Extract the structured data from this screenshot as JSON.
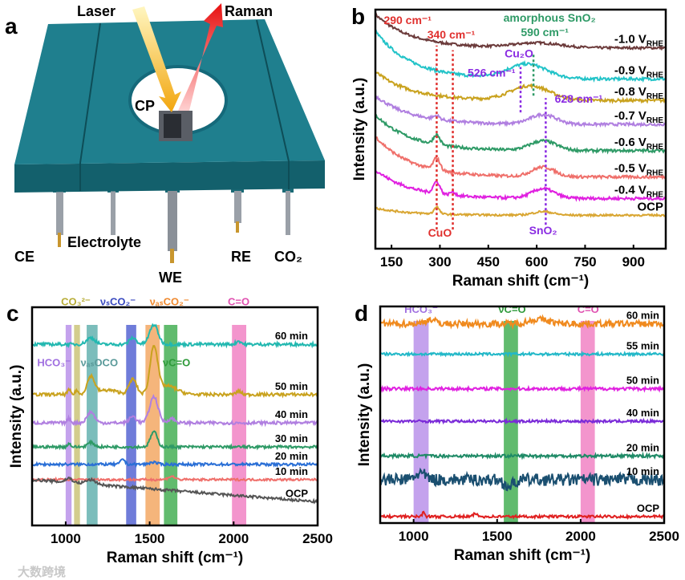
{
  "panel_a": {
    "letter": "a",
    "labels": {
      "laser": "Laser",
      "raman": "Raman",
      "cp": "CP",
      "ce": "CE",
      "electrolyte": "Electrolyte",
      "we": "WE",
      "re": "RE",
      "co2": "CO₂"
    },
    "colors": {
      "cell": "#1f7f8e",
      "cell_dark": "#13606c"
    }
  },
  "watermark": "大数跨境",
  "chart_data": [
    {
      "id": "b",
      "type": "line",
      "letter": "b",
      "xlabel": "Raman shift (cm⁻¹)",
      "ylabel": "Intensity (a.u.)",
      "xlim": [
        100,
        1000
      ],
      "ylim": [
        0,
        100
      ],
      "xticks": [
        150,
        300,
        450,
        600,
        750,
        900
      ],
      "subscript": "RHE",
      "series": [
        {
          "name": "-1.0 V",
          "sub": true,
          "color": "#6b3a3a",
          "offset": 84,
          "rise": 14,
          "noise": 0.5,
          "peaks": [
            [
              600,
              2,
              70
            ]
          ]
        },
        {
          "name": "-0.9 V",
          "sub": true,
          "color": "#22c3c8",
          "offset": 71,
          "rise": 20,
          "noise": 0.6,
          "peaks": [
            [
              570,
              6,
              60
            ]
          ]
        },
        {
          "name": "-0.8 V",
          "sub": true,
          "color": "#c9a21e",
          "offset": 62,
          "rise": 12,
          "noise": 0.6,
          "peaks": [
            [
              580,
              6,
              60
            ]
          ]
        },
        {
          "name": "-0.7 V",
          "sub": true,
          "color": "#b07fe0",
          "offset": 52,
          "rise": 12,
          "noise": 0.6,
          "peaks": [
            [
              290,
              1.5,
              10
            ],
            [
              620,
              4,
              40
            ]
          ]
        },
        {
          "name": "-0.6 V",
          "sub": true,
          "color": "#2e9a66",
          "offset": 41,
          "rise": 15,
          "noise": 0.6,
          "peaks": [
            [
              290,
              4,
              10
            ],
            [
              620,
              4,
              40
            ]
          ]
        },
        {
          "name": "-0.5 V",
          "sub": true,
          "color": "#ef6f6a",
          "offset": 30,
          "rise": 17,
          "noise": 0.6,
          "peaks": [
            [
              290,
              5,
              10
            ],
            [
              620,
              4,
              35
            ]
          ]
        },
        {
          "name": "-0.4 V",
          "sub": true,
          "color": "#e020e0",
          "offset": 21,
          "rise": 12,
          "noise": 0.6,
          "peaks": [
            [
              290,
              5,
              10
            ],
            [
              340,
              1.5,
              8
            ],
            [
              620,
              4,
              35
            ]
          ]
        },
        {
          "name": "OCP",
          "sub": false,
          "color": "#d9a632",
          "offset": 14,
          "rise": 3,
          "noise": 0.4,
          "peaks": [
            [
              290,
              3,
              8
            ],
            [
              620,
              1.5,
              30
            ]
          ]
        }
      ],
      "markers": [
        {
          "x": 290,
          "y": [
            8,
            85
          ],
          "color": "#e0302e"
        },
        {
          "x": 340,
          "y": [
            8,
            83
          ],
          "color": "#e0302e"
        },
        {
          "x": 590,
          "y": [
            64,
            82
          ],
          "color": "#2e9a66"
        },
        {
          "x": 550,
          "y": [
            57,
            76
          ],
          "color": "#8a2be2"
        },
        {
          "x": 628,
          "y": [
            10,
            63
          ],
          "color": "#8a2be2"
        }
      ],
      "annotations": [
        {
          "text": "290 cm⁻¹",
          "x": 200,
          "y": 94,
          "color": "#e0302e"
        },
        {
          "text": "340 cm⁻¹",
          "x": 335,
          "y": 88,
          "color": "#e0302e"
        },
        {
          "text": "amorphous SnO₂",
          "x": 640,
          "y": 95,
          "color": "#2e9a66"
        },
        {
          "text": "590 cm⁻¹",
          "x": 625,
          "y": 89,
          "color": "#2e9a66"
        },
        {
          "text": "Cu₂O",
          "x": 545,
          "y": 80,
          "color": "#8a2be2"
        },
        {
          "text": "526 cm⁻¹",
          "x": 460,
          "y": 72,
          "color": "#8a2be2"
        },
        {
          "text": "628 cm⁻¹",
          "x": 720,
          "y": 61,
          "color": "#8a2be2"
        },
        {
          "text": "CuO",
          "x": 300,
          "y": 5,
          "color": "#e0302e"
        },
        {
          "text": "SnO₂",
          "x": 620,
          "y": 6,
          "color": "#8a2be2"
        }
      ]
    },
    {
      "id": "c",
      "type": "line",
      "letter": "c",
      "xlabel": "Raman shift (cm⁻¹)",
      "ylabel": "Intensity (a.u.)",
      "xlim": [
        800,
        2500
      ],
      "ylim": [
        0,
        100
      ],
      "xticks": [
        1000,
        1500,
        2000,
        2500
      ],
      "bands": [
        {
          "range": [
            1000,
            1035
          ],
          "color": "#b58be8"
        },
        {
          "range": [
            1050,
            1085
          ],
          "color": "#c8c070"
        },
        {
          "range": [
            1125,
            1190
          ],
          "color": "#5aacaa"
        },
        {
          "range": [
            1360,
            1420
          ],
          "color": "#4b5bd0"
        },
        {
          "range": [
            1475,
            1560
          ],
          "color": "#f2a25a"
        },
        {
          "range": [
            1585,
            1665
          ],
          "color": "#3aaa4a"
        },
        {
          "range": [
            1990,
            2075
          ],
          "color": "#f07ac0"
        }
      ],
      "series": [
        {
          "name": "60 min",
          "color": "#22b8b0",
          "offset": 83,
          "slope": 0,
          "noise": 0.7,
          "peaks": [
            [
              1150,
              3,
              25
            ],
            [
              1400,
              3,
              20
            ],
            [
              1525,
              9,
              25
            ],
            [
              2030,
              1.5,
              15
            ]
          ]
        },
        {
          "name": "50 min",
          "color": "#c9a21e",
          "offset": 60,
          "slope": 0,
          "noise": 0.7,
          "peaks": [
            [
              1020,
              2,
              10
            ],
            [
              1065,
              2,
              8
            ],
            [
              1150,
              8,
              22
            ],
            [
              1250,
              2,
              60
            ],
            [
              1400,
              7,
              22
            ],
            [
              1525,
              21,
              22
            ],
            [
              1600,
              4,
              60
            ],
            [
              2030,
              1.5,
              15
            ]
          ]
        },
        {
          "name": "40 min",
          "color": "#b07fe0",
          "offset": 47,
          "slope": 0,
          "noise": 0.7,
          "peaks": [
            [
              1020,
              2,
              10
            ],
            [
              1150,
              5,
              22
            ],
            [
              1400,
              3,
              20
            ],
            [
              1525,
              12,
              25
            ],
            [
              1630,
              2,
              20
            ]
          ]
        },
        {
          "name": "30 min",
          "color": "#2e9a66",
          "offset": 36,
          "slope": 0,
          "noise": 0.6,
          "peaks": [
            [
              1020,
              1.5,
              10
            ],
            [
              1150,
              2,
              20
            ],
            [
              1525,
              7,
              20
            ]
          ]
        },
        {
          "name": "20 min",
          "color": "#2a6fd6",
          "offset": 28,
          "slope": 0,
          "noise": 0.6,
          "peaks": [
            [
              1340,
              2.5,
              12
            ],
            [
              1520,
              1,
              20
            ]
          ]
        },
        {
          "name": "10 min",
          "color": "#ef6f6a",
          "offset": 21,
          "slope": 0,
          "noise": 0.5,
          "peaks": [
            [
              1630,
              1.5,
              20
            ]
          ]
        },
        {
          "name": "OCP",
          "color": "#555555",
          "offset": 21,
          "slope": -0.006,
          "noise": 0.6,
          "peaks": [
            [
              1020,
              2,
              20
            ],
            [
              1150,
              2,
              30
            ]
          ]
        }
      ],
      "annotations": [
        {
          "text": "CO₃²⁻",
          "x": 1060,
          "y": 101,
          "color": "#b8ad38"
        },
        {
          "text": "νₛCO₂⁻",
          "x": 1330,
          "y": 101,
          "color": "#3a4ac0"
        },
        {
          "text": "νₐₛCO₂⁻",
          "x": 1560,
          "y": 101,
          "color": "#f08a30"
        },
        {
          "text": "C=O",
          "x": 2030,
          "y": 101,
          "color": "#e050b0"
        },
        {
          "text": "HCO₃⁻",
          "x": 930,
          "y": 73,
          "color": "#a070e0"
        },
        {
          "text": "νₐₛOCO",
          "x": 1200,
          "y": 73,
          "color": "#5a9a9a"
        },
        {
          "text": "νC=O",
          "x": 1660,
          "y": 73,
          "color": "#2e9a3a"
        }
      ]
    },
    {
      "id": "d",
      "type": "line",
      "letter": "d",
      "xlabel": "Raman shift (cm⁻¹)",
      "ylabel": "Intensity (a.u.)",
      "xlim": [
        800,
        2500
      ],
      "ylim": [
        0,
        100
      ],
      "xticks": [
        1000,
        1500,
        2000,
        2500
      ],
      "bands": [
        {
          "range": [
            1000,
            1090
          ],
          "color": "#b58be8"
        },
        {
          "range": [
            1540,
            1625
          ],
          "color": "#3aaa4a"
        },
        {
          "range": [
            2000,
            2085
          ],
          "color": "#f07ac0"
        }
      ],
      "series": [
        {
          "name": "60 min",
          "color": "#f08a1e",
          "offset": 92,
          "slope": 0,
          "noise": 1.5,
          "peaks": [
            [
              1100,
              2,
              30
            ],
            [
              1750,
              2,
              60
            ]
          ]
        },
        {
          "name": "55 min",
          "color": "#22b8c8",
          "offset": 78,
          "slope": 0,
          "noise": 0.6,
          "peaks": []
        },
        {
          "name": "50 min",
          "color": "#e020e0",
          "offset": 62,
          "slope": 0,
          "noise": 0.7,
          "peaks": []
        },
        {
          "name": "40 min",
          "color": "#7a2ad8",
          "offset": 47,
          "slope": 0,
          "noise": 0.6,
          "peaks": []
        },
        {
          "name": "20 min",
          "color": "#1e8a66",
          "offset": 31,
          "slope": 0,
          "noise": 0.7,
          "peaks": []
        },
        {
          "name": "10 min",
          "color": "#1a4f70",
          "offset": 20,
          "slope": 0,
          "noise": 2.8,
          "peaks": [
            [
              1040,
              3,
              30
            ],
            [
              1570,
              -3,
              30
            ]
          ]
        },
        {
          "name": "OCP",
          "color": "#e02020",
          "offset": 3,
          "slope": 0,
          "noise": 0.6,
          "peaks": [
            [
              1060,
              2,
              8
            ],
            [
              1370,
              1.5,
              10
            ]
          ]
        }
      ],
      "annotations": [
        {
          "text": "HCO₃⁻",
          "x": 1045,
          "y": 97,
          "color": "#a070e0"
        },
        {
          "text": "νC=O",
          "x": 1590,
          "y": 97,
          "color": "#2e9a3a"
        },
        {
          "text": "C=O",
          "x": 2045,
          "y": 97,
          "color": "#e050b0"
        }
      ]
    }
  ]
}
